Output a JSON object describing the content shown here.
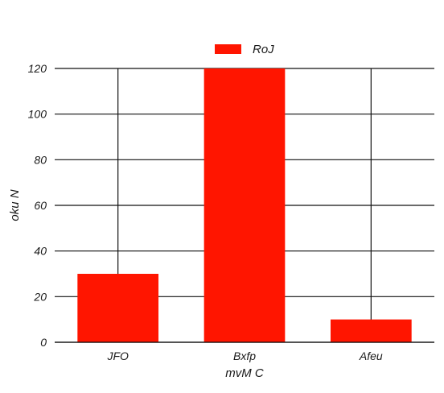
{
  "chart_data": {
    "type": "bar",
    "categories": [
      "JFO",
      "Bxfp",
      "Afeu"
    ],
    "series": [
      {
        "name": "RoJ",
        "values": [
          30,
          120,
          10
        ],
        "color": "#ff1500"
      }
    ],
    "xlabel": "mvM C",
    "ylabel": "oku N",
    "ylim": [
      0,
      120
    ],
    "yticks": [
      0,
      20,
      40,
      60,
      80,
      100,
      120
    ],
    "grid": true,
    "legend_position": "top-center"
  }
}
